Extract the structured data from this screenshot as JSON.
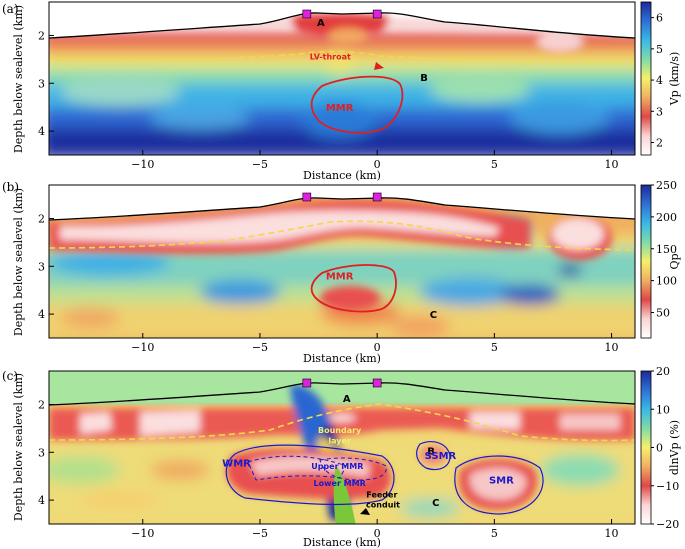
{
  "chart_data": [
    {
      "type": "heatmap",
      "panel_label": "(a)",
      "xlabel": "Distance (km)",
      "ylabel": "Depth below sealevel (km)",
      "xlim": [
        -14,
        11
      ],
      "ylim": [
        4.5,
        1.3
      ],
      "x_ticks": [
        -10,
        -5,
        0,
        5,
        10
      ],
      "x_tick_labels": [
        "−10",
        "−5",
        "0",
        "5",
        "10"
      ],
      "y_ticks": [
        2,
        3,
        4
      ],
      "y_tick_labels": [
        "2",
        "3",
        "4"
      ],
      "colorbar": {
        "label": "Vp (km/s)",
        "ticks": [
          2,
          3,
          4,
          5,
          6
        ],
        "tick_labels": [
          "2",
          "3",
          "4",
          "5",
          "6"
        ],
        "range": [
          1.6,
          6.5
        ],
        "colors": [
          "#ffffff",
          "#fbd4d4",
          "#e04848",
          "#f0ae62",
          "#f5f06a",
          "#7fdca8",
          "#39b9e6",
          "#2f6fd6",
          "#1e2a9a"
        ]
      },
      "annotations": [
        {
          "text": "A",
          "x": -2.4,
          "y": 1.8,
          "color": "#000000"
        },
        {
          "text": "LV-throat",
          "x": -2.0,
          "y": 2.5,
          "color": "#e02020"
        },
        {
          "text": "B",
          "x": 2.0,
          "y": 2.95,
          "color": "#000000"
        },
        {
          "text": "MMR",
          "x": -1.6,
          "y": 3.58,
          "color": "#e02020"
        }
      ],
      "stations": [
        -3.0,
        0.0
      ]
    },
    {
      "type": "heatmap",
      "panel_label": "(b)",
      "xlabel": "Distance (km)",
      "ylabel": "Depth below sealevel (km)",
      "xlim": [
        -14,
        11
      ],
      "ylim": [
        4.5,
        1.3
      ],
      "x_ticks": [
        -10,
        -5,
        0,
        5,
        10
      ],
      "x_tick_labels": [
        "−10",
        "−5",
        "0",
        "5",
        "10"
      ],
      "y_ticks": [
        2,
        3,
        4
      ],
      "y_tick_labels": [
        "2",
        "3",
        "4"
      ],
      "colorbar": {
        "label": "Qp",
        "ticks": [
          50,
          100,
          150,
          200,
          250
        ],
        "tick_labels": [
          "50",
          "100",
          "150",
          "200",
          "250"
        ],
        "range": [
          10,
          250
        ],
        "colors": [
          "#ffffff",
          "#fbd4d4",
          "#e04848",
          "#f0ae62",
          "#f5f06a",
          "#7fdca8",
          "#39b9e6",
          "#2f6fd6",
          "#1e2a9a"
        ]
      },
      "annotations": [
        {
          "text": "MMR",
          "x": -1.6,
          "y": 3.28,
          "color": "#e02020"
        },
        {
          "text": "C",
          "x": 2.4,
          "y": 4.08,
          "color": "#000000"
        }
      ],
      "stations": [
        -3.0,
        0.0
      ]
    },
    {
      "type": "heatmap",
      "panel_label": "(c)",
      "xlabel": "Distance (km)",
      "ylabel": "Depth below sealevel (km)",
      "xlim": [
        -14,
        11
      ],
      "ylim": [
        4.5,
        1.3
      ],
      "x_ticks": [
        -10,
        -5,
        0,
        5,
        10
      ],
      "x_tick_labels": [
        "−10",
        "−5",
        "0",
        "5",
        "10"
      ],
      "y_ticks": [
        2,
        3,
        4
      ],
      "y_tick_labels": [
        "2",
        "3",
        "4"
      ],
      "colorbar": {
        "label": "dlnVp (%)",
        "ticks": [
          -20,
          -10,
          0,
          10,
          20
        ],
        "tick_labels": [
          "−20",
          "−10",
          "0",
          "10",
          "20"
        ],
        "range": [
          -20,
          20
        ],
        "colors": [
          "#ffffff",
          "#fbd4d4",
          "#e04848",
          "#f0ae62",
          "#f5f06a",
          "#7fdca8",
          "#39b9e6",
          "#2f6fd6",
          "#1e2a9a"
        ]
      },
      "annotations": [
        {
          "text": "A",
          "x": -1.3,
          "y": 1.95,
          "color": "#000000"
        },
        {
          "text": "Boundary",
          "x": -1.6,
          "y": 2.6,
          "color": "#f5f06a"
        },
        {
          "text": "layer",
          "x": -1.6,
          "y": 2.82,
          "color": "#f5f06a"
        },
        {
          "text": "B",
          "x": 2.3,
          "y": 3.05,
          "color": "#000000"
        },
        {
          "text": "WMR",
          "x": -6.0,
          "y": 3.3,
          "color": "#1a1acc"
        },
        {
          "text": "Upper MMR",
          "x": -1.7,
          "y": 3.35,
          "color": "#1a1acc"
        },
        {
          "text": "Lower MMR",
          "x": -1.6,
          "y": 3.7,
          "color": "#1a1acc"
        },
        {
          "text": "SSMR",
          "x": 2.7,
          "y": 3.14,
          "color": "#1a1acc"
        },
        {
          "text": "SMR",
          "x": 5.3,
          "y": 3.65,
          "color": "#1a1acc"
        },
        {
          "text": "Feeder",
          "x": 0.2,
          "y": 3.95,
          "color": "#000000"
        },
        {
          "text": "conduit",
          "x": 0.25,
          "y": 4.15,
          "color": "#000000"
        },
        {
          "text": "C",
          "x": 2.5,
          "y": 4.12,
          "color": "#000000"
        }
      ],
      "stations": [
        -3.0,
        0.0
      ]
    }
  ]
}
